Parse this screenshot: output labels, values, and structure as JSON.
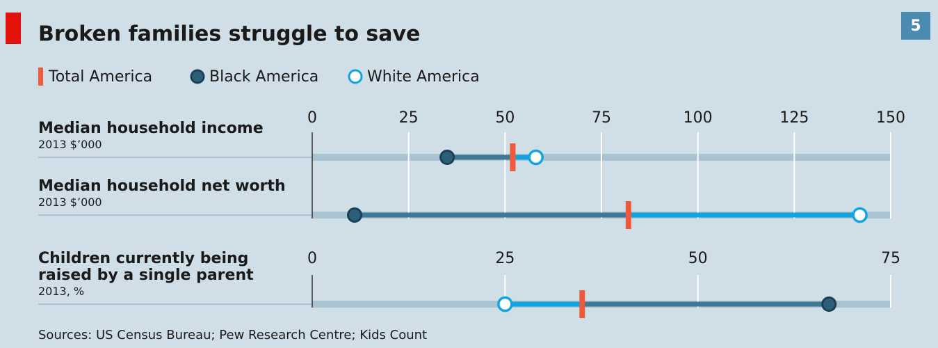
{
  "title": "Broken families struggle to save",
  "badge": "5",
  "source": "Sources: US Census Bureau; Pew Research Centre; Kids Count",
  "chart_data": [
    {
      "type": "dumbbell",
      "categories": [
        "Median household income",
        "Median household net worth"
      ],
      "subtitles": [
        "2013 $’000",
        "2013 $’000"
      ],
      "xlim": [
        0,
        150
      ],
      "xticks": [
        0,
        25,
        50,
        75,
        100,
        125,
        150
      ],
      "grid": true,
      "series": [
        {
          "name": "Total America",
          "color": "#ee5a3a",
          "values": [
            52,
            82
          ]
        },
        {
          "name": "Black America",
          "color": "#3e7895",
          "values": [
            35,
            11
          ]
        },
        {
          "name": "White America",
          "color": "#12a4dc",
          "values": [
            58,
            142
          ]
        }
      ]
    },
    {
      "type": "dumbbell",
      "categories": [
        "Children currently being raised by a single parent"
      ],
      "subtitles": [
        "2013, %"
      ],
      "xlim": [
        0,
        75
      ],
      "xticks": [
        0,
        25,
        50,
        75
      ],
      "grid": true,
      "series": [
        {
          "color": "#ee5a3a",
          "values": [
            35
          ]
        },
        {
          "color": "#3e7895",
          "values": [
            67
          ]
        },
        {
          "color": "#12a4dc",
          "values": [
            25
          ]
        }
      ]
    }
  ]
}
